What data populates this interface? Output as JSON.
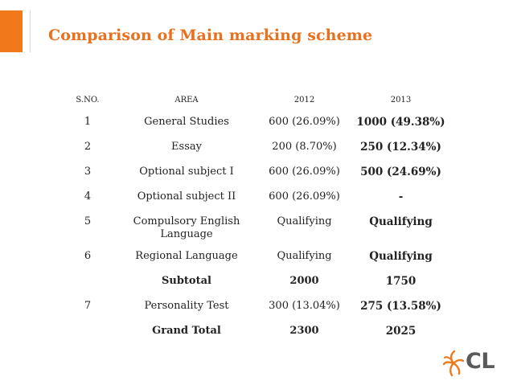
{
  "title": "Comparison of Main marking scheme",
  "accent_color": "#f07a1a",
  "table": {
    "headers": [
      "S.NO.",
      "AREA",
      "2012",
      "2013"
    ],
    "rows": [
      {
        "sno": "1",
        "area": "General Studies",
        "y2012": "600 (26.09%)",
        "y2013": "1000 (49.38%)"
      },
      {
        "sno": "2",
        "area": "Essay",
        "y2012": "200 (8.70%)",
        "y2013": "250 (12.34%)"
      },
      {
        "sno": "3",
        "area": "Optional subject I",
        "y2012": "600 (26.09%)",
        "y2013": "500 (24.69%)"
      },
      {
        "sno": "4",
        "area": "Optional subject II",
        "y2012": "600 (26.09%)",
        "y2013": "-"
      },
      {
        "sno": "5",
        "area": "Compulsory English Language",
        "y2012": "Qualifying",
        "y2013": "Qualifying"
      },
      {
        "sno": "6",
        "area": "Regional Language",
        "y2012": "Qualifying",
        "y2013": "Qualifying"
      },
      {
        "sno": "",
        "area": "Subtotal",
        "y2012": "2000",
        "y2013": "1750"
      },
      {
        "sno": "7",
        "area": "Personality Test",
        "y2012": "300 (13.04%)",
        "y2013": "275 (13.58%)"
      },
      {
        "sno": "",
        "area": "Grand Total",
        "y2012": "2300",
        "y2013": "2025"
      }
    ]
  },
  "logo": {
    "text": "CL",
    "icon": "swirl-logo-icon"
  }
}
